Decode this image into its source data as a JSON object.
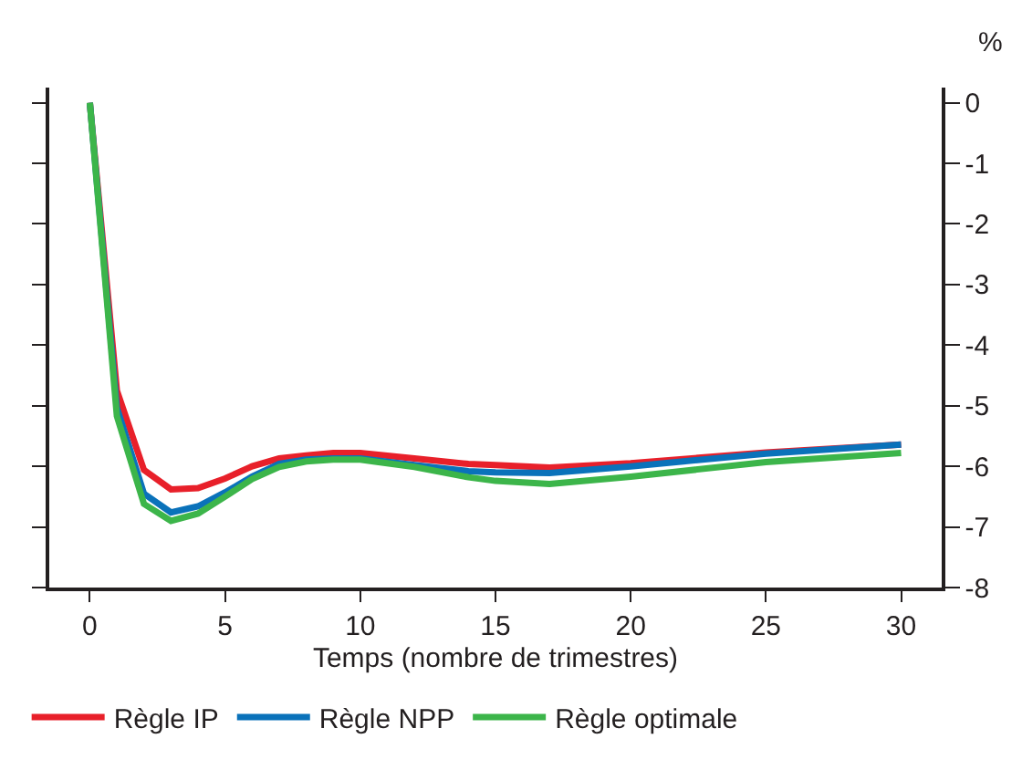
{
  "chart_data": {
    "type": "line",
    "xlabel": "Temps (nombre de trimestres)",
    "ylabel": "%",
    "x": [
      0,
      1,
      2,
      3,
      4,
      5,
      6,
      7,
      8,
      9,
      10,
      12,
      14,
      15,
      17,
      20,
      25,
      30
    ],
    "series": [
      {
        "name": "Règle IP",
        "color": "#e8202a",
        "values": [
          0,
          -4.75,
          -6.06,
          -6.38,
          -6.36,
          -6.2,
          -6.0,
          -5.87,
          -5.82,
          -5.78,
          -5.78,
          -5.87,
          -5.96,
          -5.98,
          -6.02,
          -5.95,
          -5.77,
          -5.64
        ]
      },
      {
        "name": "Règle NPP",
        "color": "#0a72ba",
        "values": [
          0,
          -5.03,
          -6.45,
          -6.76,
          -6.66,
          -6.43,
          -6.17,
          -5.96,
          -5.89,
          -5.87,
          -5.87,
          -5.98,
          -6.08,
          -6.1,
          -6.11,
          -6.0,
          -5.79,
          -5.64
        ]
      },
      {
        "name": "Règle optimale",
        "color": "#3cb54a",
        "values": [
          0,
          -5.17,
          -6.62,
          -6.9,
          -6.78,
          -6.5,
          -6.21,
          -6.01,
          -5.92,
          -5.89,
          -5.89,
          -6.01,
          -6.18,
          -6.24,
          -6.29,
          -6.17,
          -5.93,
          -5.78
        ]
      }
    ],
    "xlim": [
      -1.5,
      31.5
    ],
    "xticks": [
      0,
      5,
      10,
      15,
      20,
      25,
      30
    ],
    "ylim": [
      -8,
      0.25
    ],
    "yticks": [
      0,
      -1,
      -2,
      -3,
      -4,
      -5,
      -6,
      -7,
      -8
    ],
    "tick_labels": "xy2",
    "legend": "bottom",
    "marker": "none",
    "line_style": "solid"
  }
}
